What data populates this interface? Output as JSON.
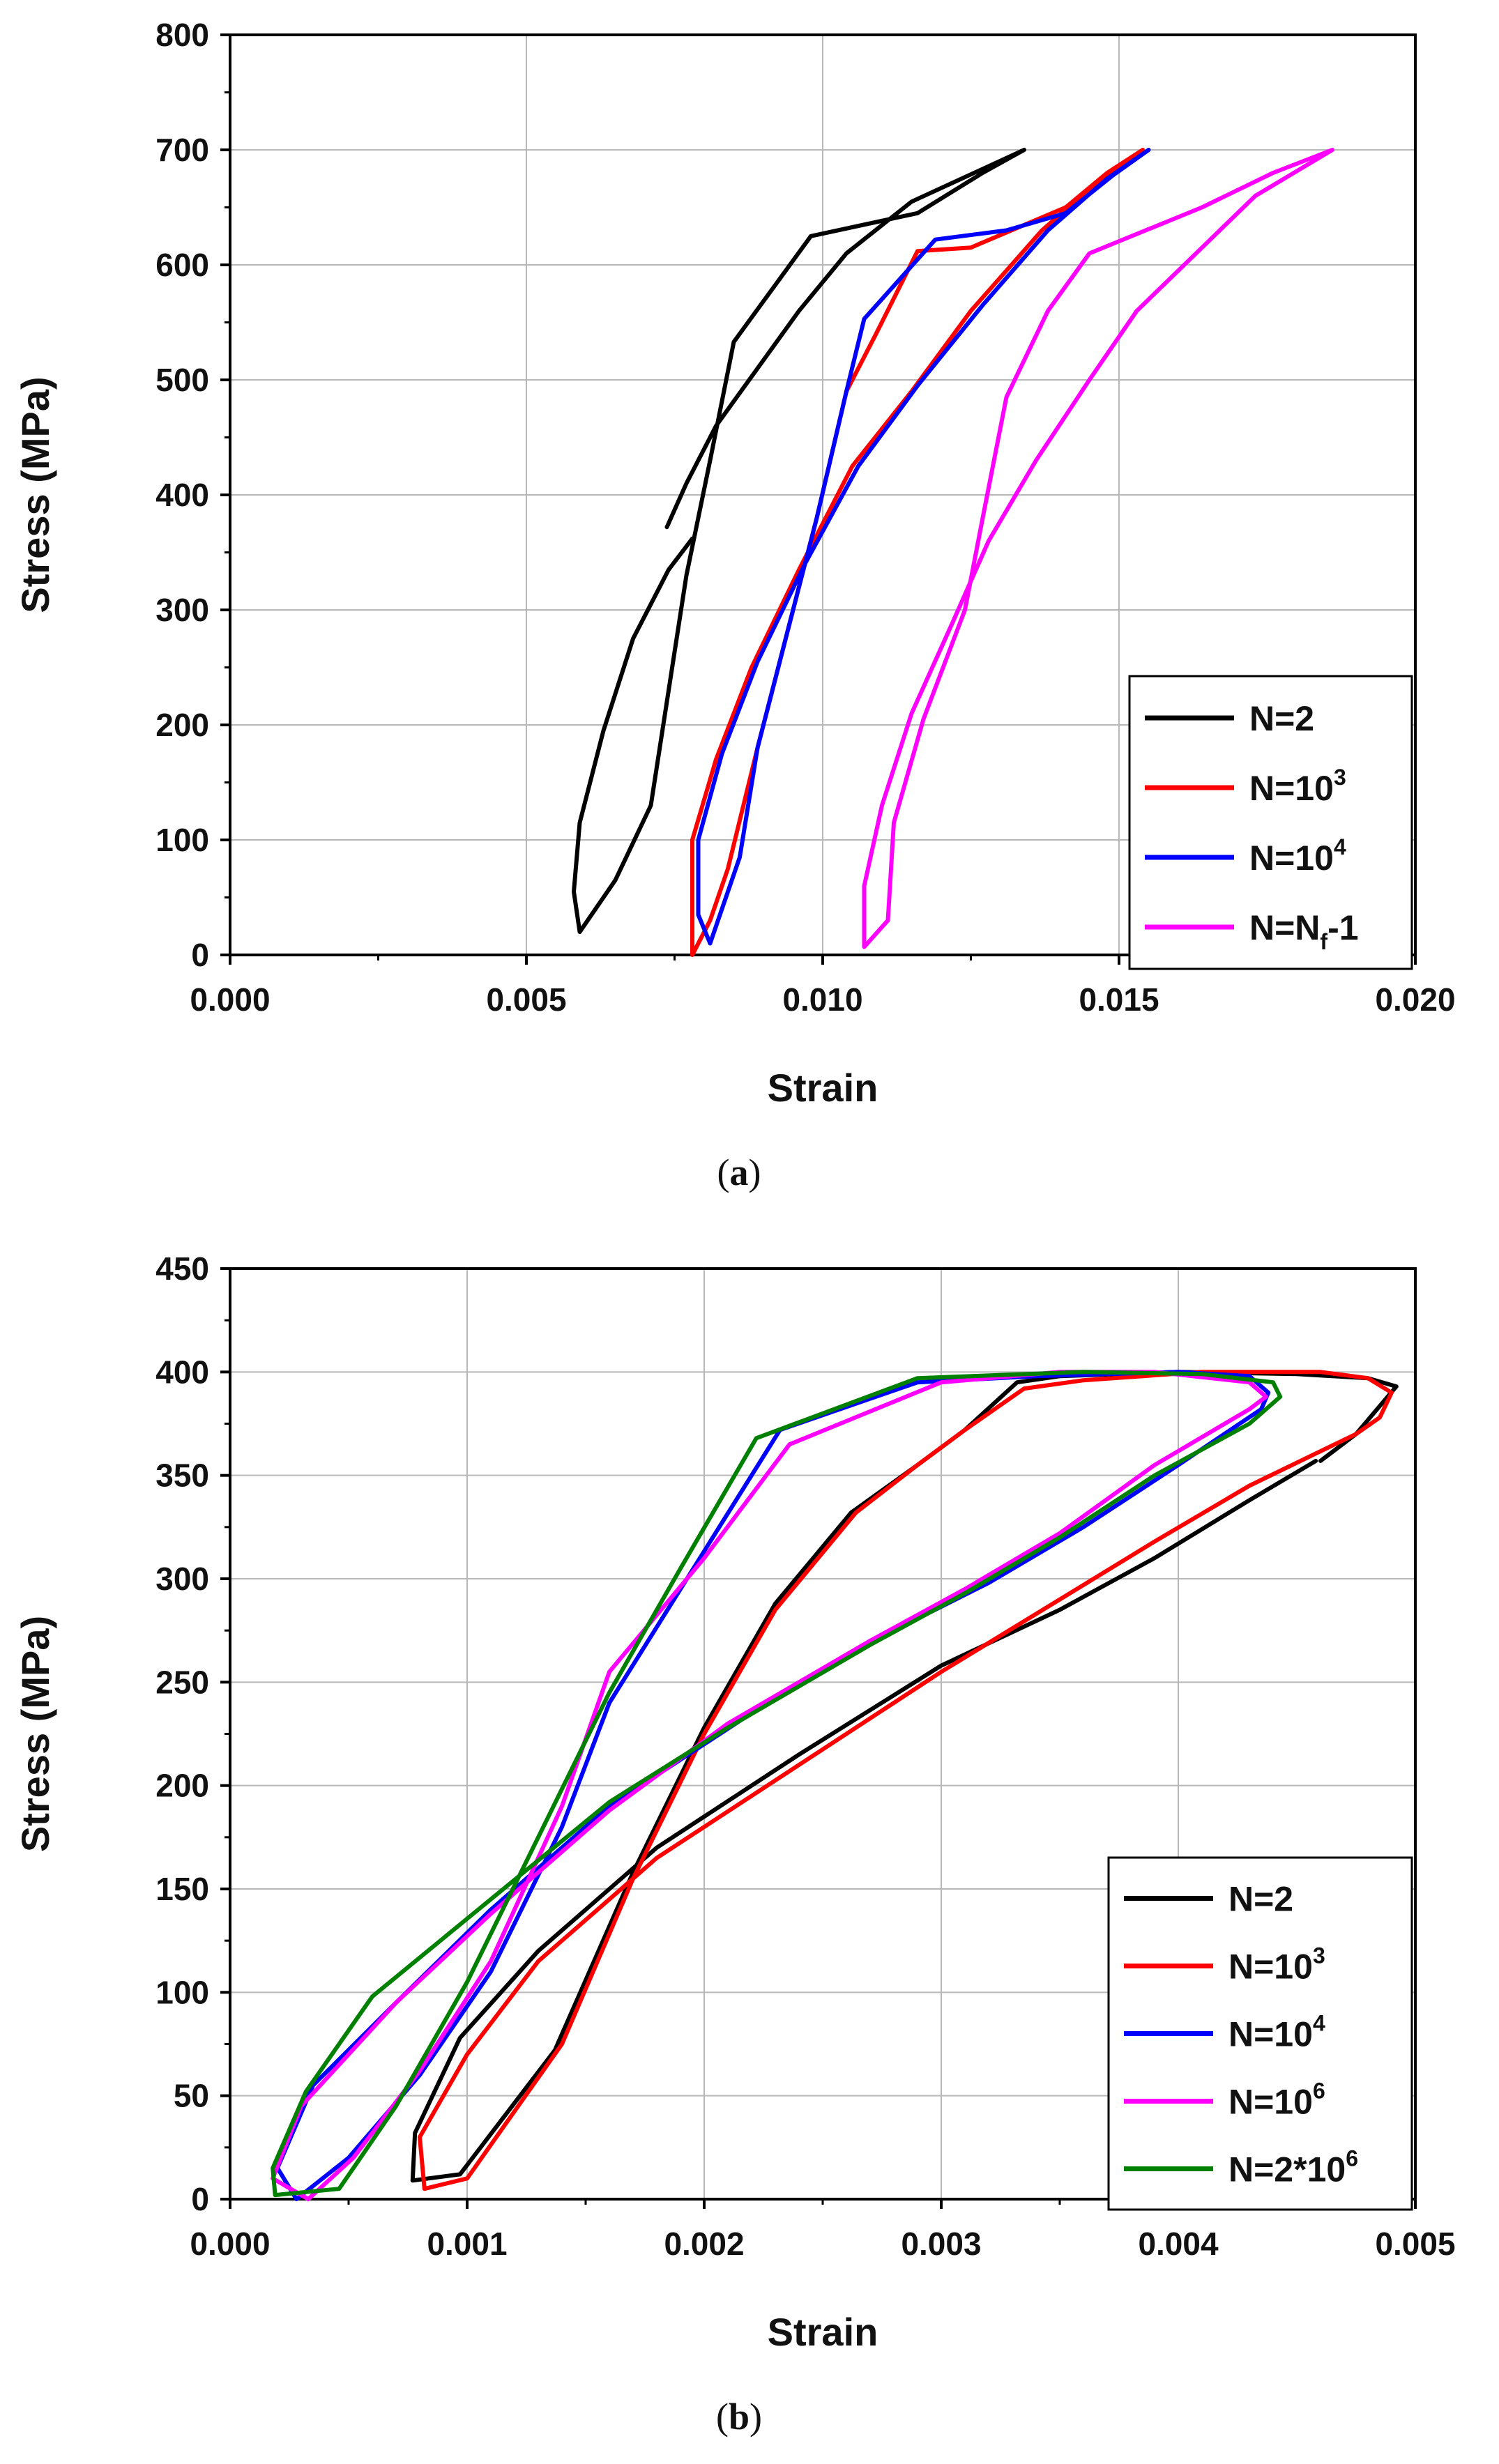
{
  "chart_data": [
    {
      "type": "line",
      "caption": "a",
      "xlabel": "Strain",
      "ylabel": "Stress (MPa)",
      "xlim": [
        0,
        0.02
      ],
      "ylim": [
        0,
        800
      ],
      "xticks": [
        0.0,
        0.005,
        0.01,
        0.015,
        0.02
      ],
      "xtick_labels": [
        "0.000",
        "0.005",
        "0.010",
        "0.015",
        "0.020"
      ],
      "yticks": [
        0,
        100,
        200,
        300,
        400,
        500,
        600,
        700,
        800
      ],
      "ytick_labels": [
        "0",
        "100",
        "200",
        "300",
        "400",
        "500",
        "600",
        "700",
        "800"
      ],
      "grid": true,
      "legend_position": "bottom-right",
      "series": [
        {
          "name": "N=2",
          "base": "N=2",
          "sup": "",
          "sub": "",
          "tail": "",
          "color": "#000000",
          "points": [
            [
              0.00737,
              372
            ],
            [
              0.0077,
              410
            ],
            [
              0.0082,
              460
            ],
            [
              0.0089,
              510
            ],
            [
              0.0096,
              560
            ],
            [
              0.0104,
              610
            ],
            [
              0.0115,
              655
            ],
            [
              0.0134,
              700
            ],
            [
              0.0127,
              680
            ],
            [
              0.0116,
              645
            ],
            [
              0.0098,
              625
            ],
            [
              0.0085,
              533
            ],
            [
              0.0081,
              430
            ],
            [
              0.0077,
              330
            ],
            [
              0.0074,
              230
            ],
            [
              0.0071,
              130
            ],
            [
              0.0065,
              65
            ],
            [
              0.0059,
              20
            ],
            [
              0.0058,
              55
            ],
            [
              0.0059,
              115
            ],
            [
              0.0063,
              195
            ],
            [
              0.0068,
              275
            ],
            [
              0.0074,
              335
            ],
            [
              0.0078,
              362
            ]
          ]
        },
        {
          "name": "N=10^3",
          "base": "N=10",
          "sup": "3",
          "sub": "",
          "tail": "",
          "color": "#ff0000",
          "points": [
            [
              0.0154,
              700
            ],
            [
              0.0148,
              680
            ],
            [
              0.0141,
              650
            ],
            [
              0.0125,
              615
            ],
            [
              0.0116,
              612
            ],
            [
              0.0109,
              540
            ],
            [
              0.0104,
              490
            ],
            [
              0.0099,
              380
            ],
            [
              0.0094,
              280
            ],
            [
              0.0089,
              180
            ],
            [
              0.0084,
              75
            ],
            [
              0.0081,
              30
            ],
            [
              0.0078,
              0
            ],
            [
              0.0078,
              40
            ],
            [
              0.0078,
              100
            ],
            [
              0.0082,
              170
            ],
            [
              0.0088,
              250
            ],
            [
              0.0096,
              335
            ],
            [
              0.0105,
              425
            ],
            [
              0.0115,
              490
            ],
            [
              0.0125,
              560
            ],
            [
              0.0137,
              630
            ],
            [
              0.0147,
              675
            ],
            [
              0.0154,
              700
            ]
          ]
        },
        {
          "name": "N=10^4",
          "base": "N=10",
          "sup": "4",
          "sub": "",
          "tail": "",
          "color": "#0000ff",
          "points": [
            [
              0.0155,
              700
            ],
            [
              0.0149,
              678
            ],
            [
              0.0141,
              645
            ],
            [
              0.0131,
              630
            ],
            [
              0.0119,
              622
            ],
            [
              0.0107,
              553
            ],
            [
              0.0104,
              490
            ],
            [
              0.0099,
              380
            ],
            [
              0.0094,
              280
            ],
            [
              0.0089,
              180
            ],
            [
              0.0086,
              85
            ],
            [
              0.0083,
              40
            ],
            [
              0.0081,
              10
            ],
            [
              0.0079,
              35
            ],
            [
              0.0079,
              100
            ],
            [
              0.0083,
              175
            ],
            [
              0.0089,
              255
            ],
            [
              0.0097,
              340
            ],
            [
              0.0106,
              425
            ],
            [
              0.0116,
              495
            ],
            [
              0.0127,
              565
            ],
            [
              0.0138,
              630
            ],
            [
              0.0148,
              675
            ],
            [
              0.0155,
              700
            ]
          ]
        },
        {
          "name": "N=Nf-1",
          "base": "N=N",
          "sup": "",
          "sub": "f",
          "tail": "-1",
          "color": "#ff00ff",
          "points": [
            [
              0.0186,
              700
            ],
            [
              0.0176,
              680
            ],
            [
              0.0164,
              650
            ],
            [
              0.0145,
              610
            ],
            [
              0.0138,
              560
            ],
            [
              0.0131,
              485
            ],
            [
              0.0127,
              380
            ],
            [
              0.0124,
              300
            ],
            [
              0.0117,
              205
            ],
            [
              0.0112,
              115
            ],
            [
              0.0111,
              30
            ],
            [
              0.0107,
              7
            ],
            [
              0.0107,
              60
            ],
            [
              0.011,
              130
            ],
            [
              0.0115,
              210
            ],
            [
              0.0122,
              290
            ],
            [
              0.0128,
              360
            ],
            [
              0.0136,
              430
            ],
            [
              0.0145,
              500
            ],
            [
              0.0153,
              560
            ],
            [
              0.0163,
              610
            ],
            [
              0.0173,
              660
            ],
            [
              0.0186,
              700
            ]
          ]
        }
      ]
    },
    {
      "type": "line",
      "caption": "b",
      "xlabel": "Strain",
      "ylabel": "Stress (MPa)",
      "xlim": [
        0,
        0.005
      ],
      "ylim": [
        0,
        450
      ],
      "xticks": [
        0.0,
        0.001,
        0.002,
        0.003,
        0.004,
        0.005
      ],
      "xtick_labels": [
        "0.000",
        "0.001",
        "0.002",
        "0.003",
        "0.004",
        "0.005"
      ],
      "yticks": [
        0,
        50,
        100,
        150,
        200,
        250,
        300,
        350,
        400,
        450
      ],
      "ytick_labels": [
        "0",
        "50",
        "100",
        "150",
        "200",
        "250",
        "300",
        "350",
        "400",
        "450"
      ],
      "grid": true,
      "legend_position": "bottom-right",
      "series": [
        {
          "name": "N=2",
          "base": "N=2",
          "sup": "",
          "sub": "",
          "tail": "",
          "color": "#000000",
          "points": [
            [
              0.00458,
              357
            ],
            [
              0.0043,
              338
            ],
            [
              0.0039,
              310
            ],
            [
              0.0035,
              285
            ],
            [
              0.003,
              258
            ],
            [
              0.0024,
              215
            ],
            [
              0.0018,
              170
            ],
            [
              0.0013,
              120
            ],
            [
              0.00097,
              78
            ],
            [
              0.00078,
              32
            ],
            [
              0.00077,
              9
            ],
            [
              0.00097,
              12
            ],
            [
              0.00137,
              72
            ],
            [
              0.0017,
              158
            ],
            [
              0.002,
              228
            ],
            [
              0.0023,
              288
            ],
            [
              0.00262,
              332
            ],
            [
              0.0029,
              355
            ],
            [
              0.0031,
              372
            ],
            [
              0.00332,
              395
            ],
            [
              0.0035,
              398
            ],
            [
              0.004,
              400
            ],
            [
              0.0045,
              399
            ],
            [
              0.0048,
              397
            ],
            [
              0.00492,
              393
            ],
            [
              0.00475,
              370
            ],
            [
              0.0046,
              357
            ]
          ]
        },
        {
          "name": "N=10^3",
          "base": "N=10",
          "sup": "3",
          "sub": "",
          "tail": "",
          "color": "#ff0000",
          "points": [
            [
              0.00475,
              370
            ],
            [
              0.0043,
              345
            ],
            [
              0.0039,
              318
            ],
            [
              0.0035,
              290
            ],
            [
              0.003,
              255
            ],
            [
              0.0024,
              210
            ],
            [
              0.0018,
              165
            ],
            [
              0.0013,
              115
            ],
            [
              0.001,
              70
            ],
            [
              0.0008,
              30
            ],
            [
              0.00082,
              5
            ],
            [
              0.001,
              10
            ],
            [
              0.0014,
              75
            ],
            [
              0.0017,
              155
            ],
            [
              0.002,
              225
            ],
            [
              0.0023,
              285
            ],
            [
              0.00264,
              332
            ],
            [
              0.0029,
              355
            ],
            [
              0.0031,
              372
            ],
            [
              0.00335,
              392
            ],
            [
              0.0036,
              396
            ],
            [
              0.0041,
              400
            ],
            [
              0.0046,
              400
            ],
            [
              0.0048,
              397
            ],
            [
              0.0049,
              390
            ],
            [
              0.00485,
              378
            ],
            [
              0.00475,
              370
            ]
          ]
        },
        {
          "name": "N=10^4",
          "base": "N=10",
          "sup": "4",
          "sub": "",
          "tail": "",
          "color": "#0000ff",
          "points": [
            [
              0.00435,
              382
            ],
            [
              0.004,
              355
            ],
            [
              0.0036,
              325
            ],
            [
              0.0032,
              298
            ],
            [
              0.0028,
              275
            ],
            [
              0.0022,
              235
            ],
            [
              0.0016,
              190
            ],
            [
              0.0011,
              140
            ],
            [
              0.0007,
              95
            ],
            [
              0.00035,
              55
            ],
            [
              0.0002,
              15
            ],
            [
              0.00028,
              0
            ],
            [
              0.0005,
              20
            ],
            [
              0.0008,
              60
            ],
            [
              0.0011,
              110
            ],
            [
              0.0014,
              180
            ],
            [
              0.0016,
              240
            ],
            [
              0.0019,
              295
            ],
            [
              0.00232,
              372
            ],
            [
              0.0029,
              395
            ],
            [
              0.0034,
              398
            ],
            [
              0.004,
              400
            ],
            [
              0.0043,
              398
            ],
            [
              0.00438,
              390
            ],
            [
              0.00435,
              382
            ]
          ]
        },
        {
          "name": "N=10^6",
          "base": "N=10",
          "sup": "6",
          "sub": "",
          "tail": "",
          "color": "#ff00ff",
          "points": [
            [
              0.0043,
              382
            ],
            [
              0.0039,
              355
            ],
            [
              0.0035,
              322
            ],
            [
              0.0031,
              295
            ],
            [
              0.0027,
              270
            ],
            [
              0.0021,
              230
            ],
            [
              0.0016,
              188
            ],
            [
              0.0011,
              138
            ],
            [
              0.0007,
              95
            ],
            [
              0.0003,
              45
            ],
            [
              0.00018,
              10
            ],
            [
              0.00033,
              0
            ],
            [
              0.00052,
              20
            ],
            [
              0.0008,
              62
            ],
            [
              0.0011,
              115
            ],
            [
              0.0014,
              190
            ],
            [
              0.0016,
              255
            ],
            [
              0.002,
              310
            ],
            [
              0.00236,
              365
            ],
            [
              0.003,
              395
            ],
            [
              0.0035,
              400
            ],
            [
              0.0039,
              400
            ],
            [
              0.0043,
              395
            ],
            [
              0.00437,
              388
            ],
            [
              0.0043,
              382
            ]
          ]
        },
        {
          "name": "N=2*10^6",
          "base": "N=2*10",
          "sup": "6",
          "sub": "",
          "tail": "",
          "color": "#008000",
          "points": [
            [
              0.0043,
              375
            ],
            [
              0.0039,
              350
            ],
            [
              0.0035,
              320
            ],
            [
              0.0031,
              293
            ],
            [
              0.0027,
              268
            ],
            [
              0.0021,
              228
            ],
            [
              0.0016,
              192
            ],
            [
              0.0011,
              145
            ],
            [
              0.0006,
              98
            ],
            [
              0.00032,
              52
            ],
            [
              0.00018,
              15
            ],
            [
              0.00019,
              2
            ],
            [
              0.00046,
              5
            ],
            [
              0.0007,
              45
            ],
            [
              0.001,
              105
            ],
            [
              0.0013,
              175
            ],
            [
              0.0016,
              245
            ],
            [
              0.0019,
              305
            ],
            [
              0.00222,
              368
            ],
            [
              0.0029,
              397
            ],
            [
              0.0036,
              400
            ],
            [
              0.0041,
              399
            ],
            [
              0.0044,
              395
            ],
            [
              0.00443,
              388
            ],
            [
              0.0043,
              375
            ]
          ]
        }
      ]
    }
  ]
}
